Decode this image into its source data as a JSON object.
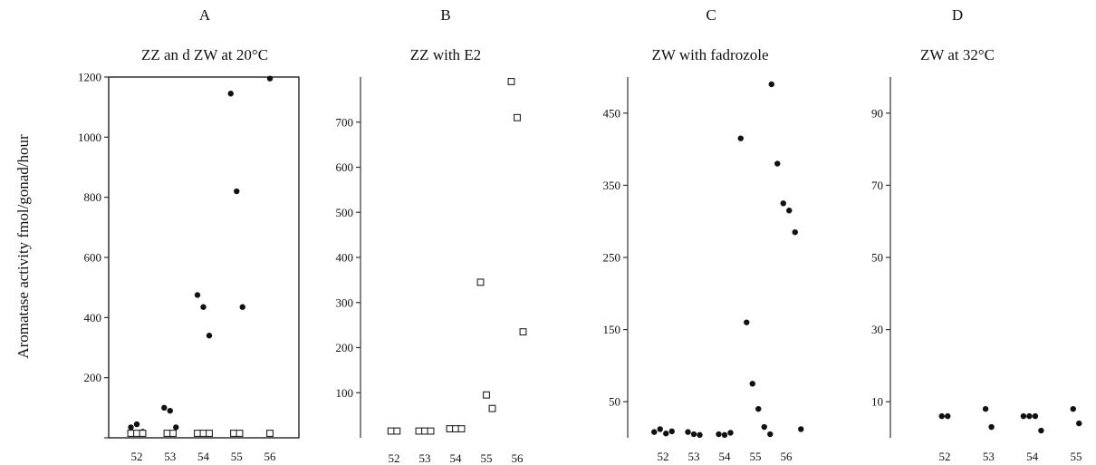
{
  "chart_data": {
    "ylabel": "Aromatase activity fmol/gonad/hour",
    "panels": [
      {
        "letter": "A",
        "title": "ZZ an d ZW at 20°C",
        "type": "scatter",
        "xticks": [
          "52",
          "53",
          "54",
          "55",
          "56"
        ],
        "yticks": [
          "200",
          "400",
          "600",
          "800",
          "1000",
          "1200"
        ],
        "ylim": [
          0,
          1200
        ],
        "series": [
          {
            "marker": "filled-circle",
            "points": [
              {
                "x": 52,
                "y": 35
              },
              {
                "x": 52,
                "y": 45
              },
              {
                "x": 52,
                "y": 20
              },
              {
                "x": 53,
                "y": 100
              },
              {
                "x": 53,
                "y": 90
              },
              {
                "x": 53,
                "y": 35
              },
              {
                "x": 54,
                "y": 475
              },
              {
                "x": 54,
                "y": 435
              },
              {
                "x": 54,
                "y": 340
              },
              {
                "x": 55,
                "y": 1145
              },
              {
                "x": 55,
                "y": 820
              },
              {
                "x": 55,
                "y": 435
              },
              {
                "x": 56,
                "y": 1195
              }
            ]
          },
          {
            "marker": "open-square",
            "points": [
              {
                "x": 52,
                "y": 15
              },
              {
                "x": 52,
                "y": 15
              },
              {
                "x": 52,
                "y": 15
              },
              {
                "x": 53,
                "y": 15
              },
              {
                "x": 53,
                "y": 15
              },
              {
                "x": 54,
                "y": 15
              },
              {
                "x": 54,
                "y": 15
              },
              {
                "x": 54,
                "y": 15
              },
              {
                "x": 55,
                "y": 15
              },
              {
                "x": 55,
                "y": 15
              },
              {
                "x": 56,
                "y": 15
              }
            ]
          }
        ]
      },
      {
        "letter": "B",
        "title": "ZZ with E2",
        "type": "scatter",
        "xticks": [
          "52",
          "53",
          "54",
          "55",
          "56"
        ],
        "yticks": [
          "100",
          "200",
          "300",
          "400",
          "500",
          "600",
          "700"
        ],
        "ylim": [
          0,
          800
        ],
        "series": [
          {
            "marker": "open-square",
            "points": [
              {
                "x": 52,
                "y": 15
              },
              {
                "x": 52,
                "y": 15
              },
              {
                "x": 53,
                "y": 15
              },
              {
                "x": 53,
                "y": 15
              },
              {
                "x": 53,
                "y": 15
              },
              {
                "x": 54,
                "y": 20
              },
              {
                "x": 54,
                "y": 20
              },
              {
                "x": 54,
                "y": 20
              },
              {
                "x": 55,
                "y": 345
              },
              {
                "x": 55,
                "y": 95
              },
              {
                "x": 55,
                "y": 65
              },
              {
                "x": 56,
                "y": 790
              },
              {
                "x": 56,
                "y": 710
              },
              {
                "x": 56,
                "y": 235
              }
            ]
          }
        ]
      },
      {
        "letter": "C",
        "title": "ZW with fadrozole",
        "type": "scatter",
        "xticks": [
          "52",
          "53",
          "54",
          "55",
          "56"
        ],
        "yticks": [
          "50",
          "150",
          "250",
          "350",
          "450"
        ],
        "ylim": [
          0,
          500
        ],
        "series": [
          {
            "marker": "filled-circle",
            "points": [
              {
                "x": 52,
                "y": 8
              },
              {
                "x": 52,
                "y": 12
              },
              {
                "x": 52,
                "y": 6
              },
              {
                "x": 52,
                "y": 9
              },
              {
                "x": 53,
                "y": 8
              },
              {
                "x": 53,
                "y": 5
              },
              {
                "x": 53,
                "y": 4
              },
              {
                "x": 54,
                "y": 5
              },
              {
                "x": 54,
                "y": 4
              },
              {
                "x": 54,
                "y": 7
              },
              {
                "x": 55,
                "y": 415
              },
              {
                "x": 55,
                "y": 160
              },
              {
                "x": 55,
                "y": 75
              },
              {
                "x": 55,
                "y": 40
              },
              {
                "x": 55,
                "y": 15
              },
              {
                "x": 55,
                "y": 5
              },
              {
                "x": 56,
                "y": 490
              },
              {
                "x": 56,
                "y": 380
              },
              {
                "x": 56,
                "y": 325
              },
              {
                "x": 56,
                "y": 315
              },
              {
                "x": 56,
                "y": 285
              },
              {
                "x": 56,
                "y": 12
              }
            ]
          }
        ]
      },
      {
        "letter": "D",
        "title": "ZW at 32°C",
        "type": "scatter",
        "xticks": [
          "52",
          "53",
          "54",
          "55"
        ],
        "yticks": [
          "10",
          "30",
          "50",
          "70",
          "90"
        ],
        "ylim": [
          0,
          100
        ],
        "series": [
          {
            "marker": "filled-circle",
            "points": [
              {
                "x": 52,
                "y": 6
              },
              {
                "x": 52,
                "y": 6
              },
              {
                "x": 53,
                "y": 8
              },
              {
                "x": 53,
                "y": 3
              },
              {
                "x": 54,
                "y": 6
              },
              {
                "x": 54,
                "y": 6
              },
              {
                "x": 54,
                "y": 6
              },
              {
                "x": 54,
                "y": 2
              },
              {
                "x": 55,
                "y": 8
              },
              {
                "x": 55,
                "y": 4
              }
            ]
          }
        ]
      }
    ]
  }
}
